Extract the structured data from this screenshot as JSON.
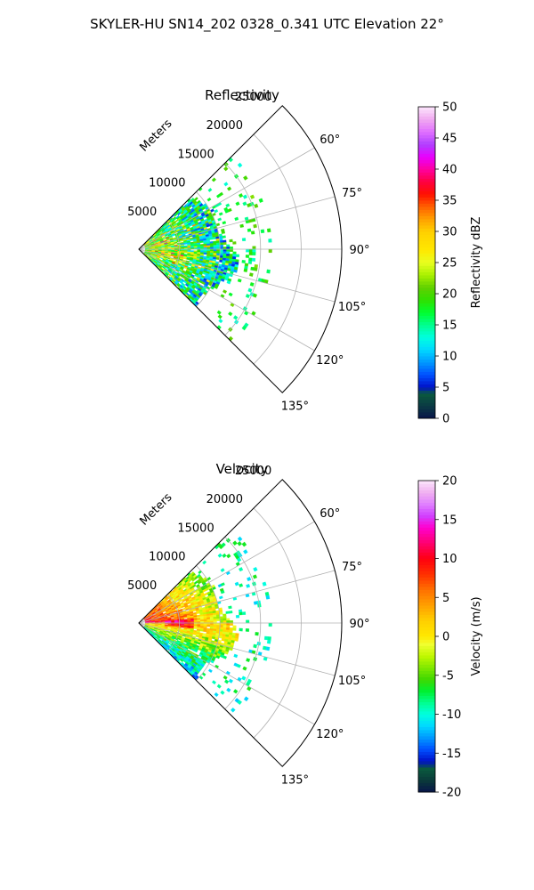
{
  "figure": {
    "suptitle": "SKYLER-HU  SN14_202  0328_0.341 UTC Elevation 22°"
  },
  "chart_data": [
    {
      "type": "heatmap",
      "title": "Reflectivity",
      "radial_label": "Meters",
      "r_ticks": [
        "5000",
        "10000",
        "15000",
        "20000",
        "25000"
      ],
      "r_tick_values": [
        5000,
        10000,
        15000,
        20000,
        25000
      ],
      "theta_ticks": [
        "60°",
        "75°",
        "90°",
        "105°",
        "120°",
        "135°"
      ],
      "theta_tick_values": [
        60,
        75,
        90,
        105,
        120,
        135
      ],
      "theta_range": [
        45,
        135
      ],
      "r_range": [
        0,
        25000
      ],
      "grid": true,
      "colorbar": {
        "label": "Reflectivity dBZ",
        "ticks": [
          "0",
          "5",
          "10",
          "15",
          "20",
          "25",
          "30",
          "35",
          "40",
          "45",
          "50"
        ],
        "tick_values": [
          0,
          5,
          10,
          15,
          20,
          25,
          30,
          35,
          40,
          45,
          50
        ],
        "range": [
          0,
          50
        ]
      },
      "echo_region": {
        "note": "dense echo between roughly 5000 and 10000 m, scattered echo out to about 16000 m",
        "dominant_range_dbz": [
          10,
          40
        ]
      }
    },
    {
      "type": "heatmap",
      "title": "Velocity",
      "radial_label": "Meters",
      "r_ticks": [
        "5000",
        "10000",
        "15000",
        "20000",
        "25000"
      ],
      "r_tick_values": [
        5000,
        10000,
        15000,
        20000,
        25000
      ],
      "theta_ticks": [
        "60°",
        "75°",
        "90°",
        "105°",
        "120°",
        "135°"
      ],
      "theta_tick_values": [
        60,
        75,
        90,
        105,
        120,
        135
      ],
      "theta_range": [
        45,
        135
      ],
      "r_range": [
        0,
        25000
      ],
      "grid": true,
      "colorbar": {
        "label": "Velocity (m/s)",
        "ticks": [
          "-20",
          "-15",
          "-10",
          "-5",
          "0",
          "5",
          "10",
          "15",
          "20"
        ],
        "tick_values": [
          -20,
          -15,
          -10,
          -5,
          0,
          5,
          10,
          15,
          20
        ],
        "range": [
          -20,
          20
        ]
      },
      "echo_region": {
        "note": "positive velocities near radar in the upper sector, negative to the north-east, near-zero along the south-east edge",
        "dominant_range_ms": [
          -12,
          15
        ]
      }
    }
  ]
}
